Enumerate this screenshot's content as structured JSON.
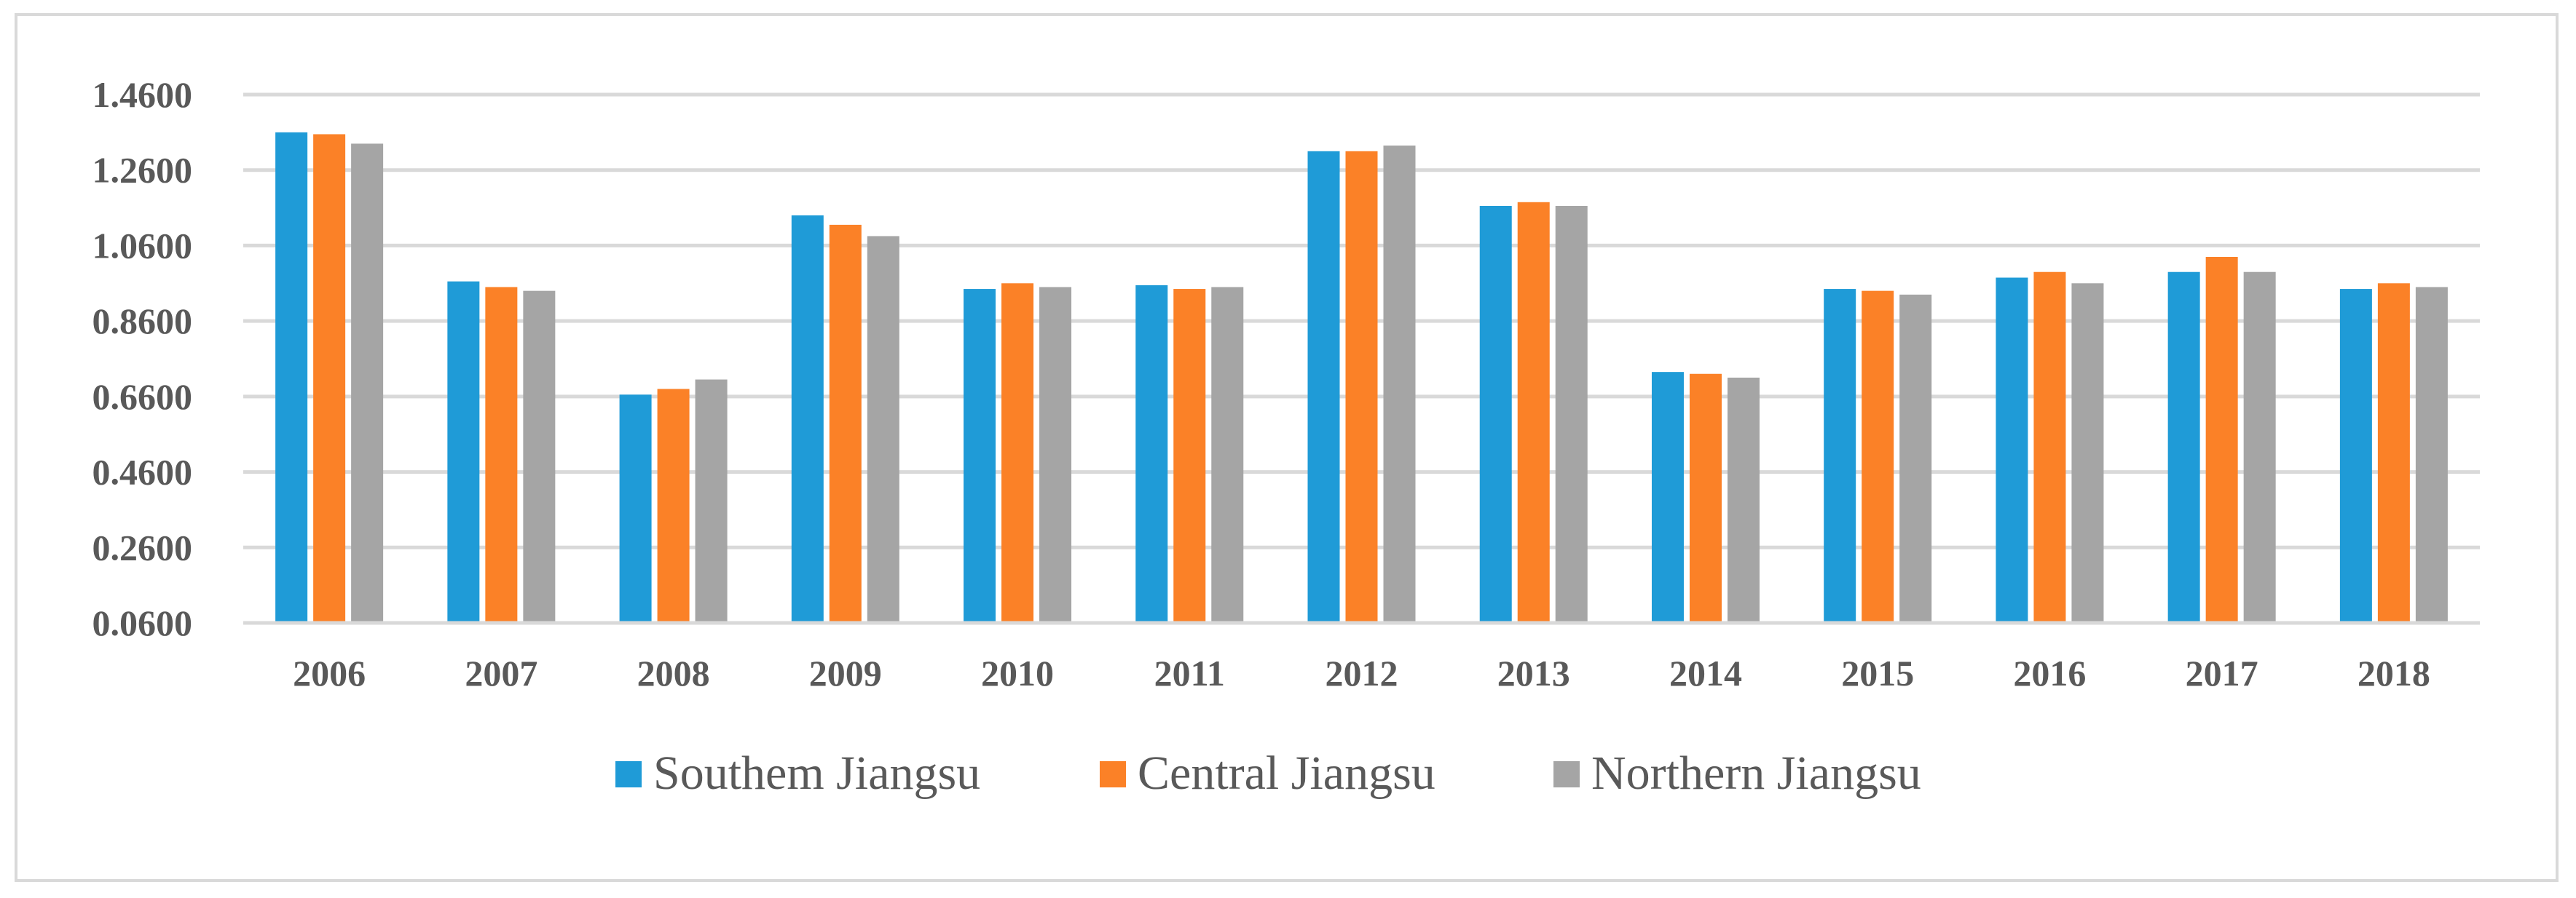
{
  "chart_data": {
    "type": "bar",
    "title": "",
    "xlabel": "",
    "ylabel": "",
    "ylim": [
      0.06,
      1.46
    ],
    "yticks": [
      "0.0600",
      "0.2600",
      "0.4600",
      "0.6600",
      "0.8600",
      "1.0600",
      "1.2600",
      "1.4600"
    ],
    "ytick_values": [
      0.06,
      0.26,
      0.46,
      0.66,
      0.86,
      1.06,
      1.26,
      1.46
    ],
    "grid": true,
    "legend_position": "bottom-center",
    "categories": [
      "2006",
      "2007",
      "2008",
      "2009",
      "2010",
      "2011",
      "2012",
      "2013",
      "2014",
      "2015",
      "2016",
      "2017",
      "2018"
    ],
    "series": [
      {
        "name": "Southem Jiangsu",
        "color": "#1f9bd7",
        "values": [
          1.36,
          0.965,
          0.665,
          1.14,
          0.945,
          0.955,
          1.31,
          1.165,
          0.725,
          0.945,
          0.975,
          0.99,
          0.945
        ]
      },
      {
        "name": "Central Jiangsu",
        "color": "#fb8127",
        "values": [
          1.355,
          0.95,
          0.68,
          1.115,
          0.96,
          0.945,
          1.31,
          1.175,
          0.72,
          0.94,
          0.99,
          1.03,
          0.96
        ]
      },
      {
        "name": "Northern Jiangsu",
        "color": "#a5a5a5",
        "values": [
          1.33,
          0.94,
          0.705,
          1.085,
          0.95,
          0.95,
          1.325,
          1.165,
          0.71,
          0.93,
          0.96,
          0.99,
          0.95
        ]
      }
    ]
  }
}
